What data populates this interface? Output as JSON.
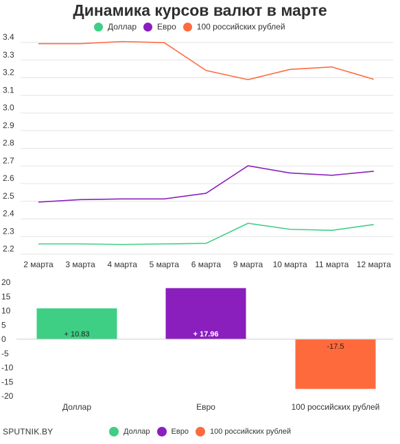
{
  "title": "Динамика курсов валют в марте",
  "source": "SPUTNIK.BY",
  "colors": {
    "usd": "#3ecf85",
    "eur": "#8a1fbd",
    "rub": "#ff6a3d"
  },
  "legend": [
    {
      "label": "Доллар",
      "color": "#3ecf85"
    },
    {
      "label": "Евро",
      "color": "#8a1fbd"
    },
    {
      "label": "100 российских рублей",
      "color": "#ff6a3d"
    }
  ],
  "chart_data": [
    {
      "type": "line",
      "title": "Динамика курсов валют в марте",
      "categories": [
        "2 марта",
        "3 марта",
        "4 марта",
        "5 марта",
        "6 марта",
        "9 марта",
        "10 марта",
        "11 марта",
        "12 марта"
      ],
      "series": [
        {
          "name": "Доллар",
          "color": "#3ecf85",
          "values": [
            2.235,
            2.235,
            2.232,
            2.235,
            2.238,
            2.352,
            2.318,
            2.312,
            2.345
          ]
        },
        {
          "name": "Евро",
          "color": "#8a1fbd",
          "values": [
            2.472,
            2.486,
            2.49,
            2.49,
            2.522,
            2.678,
            2.637,
            2.624,
            2.647
          ]
        },
        {
          "name": "100 российских рублей",
          "color": "#ff6a3d",
          "values": [
            3.37,
            3.37,
            3.382,
            3.376,
            3.218,
            3.166,
            3.224,
            3.238,
            3.168
          ]
        }
      ],
      "yticks": [
        "3.4",
        "3.3",
        "3.2",
        "3.1",
        "3.0",
        "2.9",
        "2.8",
        "2.7",
        "2.6",
        "2.5",
        "2.4",
        "2.3",
        "2.2"
      ],
      "ylim": [
        2.18,
        3.45
      ],
      "grid": true,
      "legend_position": "top"
    },
    {
      "type": "bar",
      "categories": [
        "Доллар",
        "Евро",
        "100 российских рублей"
      ],
      "values": [
        10.83,
        17.96,
        -17.5
      ],
      "labels": [
        "+ 10.83",
        "+ 17.96",
        "-17.5"
      ],
      "colors": [
        "#3ecf85",
        "#8a1fbd",
        "#ff6a3d"
      ],
      "yticks": [
        "20",
        "15",
        "10",
        "5",
        "0",
        "-5",
        "-10",
        "-15",
        "-20"
      ],
      "ylim": [
        -20,
        20
      ],
      "grid": false,
      "legend_position": "bottom"
    }
  ]
}
